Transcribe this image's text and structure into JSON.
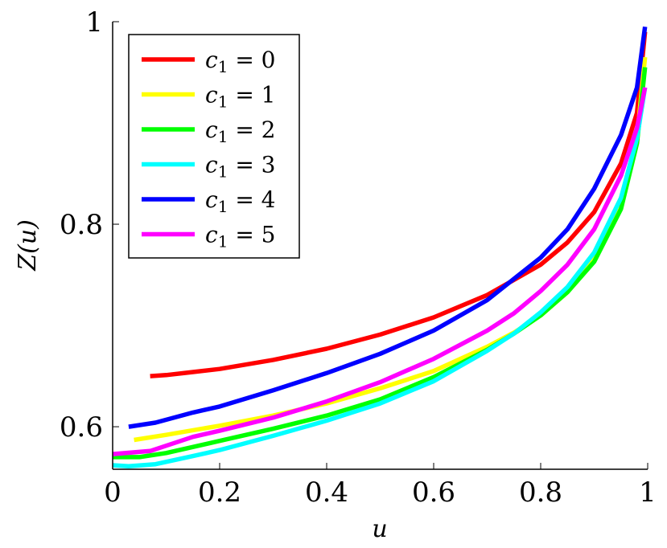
{
  "chart_data": {
    "type": "line",
    "xlabel": "u",
    "ylabel": "Z(u)",
    "xlim": [
      0,
      1
    ],
    "ylim": [
      0.558,
      1.0
    ],
    "x_ticks": [
      {
        "value": 0,
        "label": "0"
      },
      {
        "value": 0.2,
        "label": "0.2"
      },
      {
        "value": 0.4,
        "label": "0.4"
      },
      {
        "value": 0.6,
        "label": "0.6"
      },
      {
        "value": 0.8,
        "label": "0.8"
      },
      {
        "value": 1,
        "label": "1"
      }
    ],
    "y_ticks": [
      {
        "value": 0.6,
        "label": "0.6"
      },
      {
        "value": 0.8,
        "label": "0.8"
      },
      {
        "value": 1,
        "label": "1"
      }
    ],
    "grid": false,
    "legend_position": "top-left",
    "series": [
      {
        "name": "c1 = 0",
        "legend_sub": "1",
        "legend_value": "0",
        "color": "#ff0000",
        "x": [
          0.07,
          0.1,
          0.15,
          0.2,
          0.3,
          0.4,
          0.5,
          0.6,
          0.7,
          0.8,
          0.85,
          0.9,
          0.95,
          0.98,
          0.995
        ],
        "y": [
          0.65,
          0.651,
          0.654,
          0.657,
          0.666,
          0.677,
          0.691,
          0.708,
          0.73,
          0.76,
          0.782,
          0.812,
          0.86,
          0.91,
          0.99
        ]
      },
      {
        "name": "c1 = 1",
        "legend_sub": "1",
        "legend_value": "1",
        "color": "#ffff00",
        "x": [
          0.04,
          0.1,
          0.2,
          0.3,
          0.4,
          0.5,
          0.6,
          0.7,
          0.75,
          0.8,
          0.85,
          0.9,
          0.95,
          0.98,
          0.995
        ],
        "y": [
          0.587,
          0.592,
          0.601,
          0.611,
          0.623,
          0.638,
          0.655,
          0.679,
          0.693,
          0.71,
          0.733,
          0.765,
          0.82,
          0.885,
          0.965
        ]
      },
      {
        "name": "c1 = 2",
        "legend_sub": "1",
        "legend_value": "2",
        "color": "#00ff00",
        "x": [
          0,
          0.05,
          0.1,
          0.2,
          0.3,
          0.4,
          0.5,
          0.6,
          0.7,
          0.75,
          0.8,
          0.85,
          0.9,
          0.95,
          0.98,
          0.995
        ],
        "y": [
          0.57,
          0.57,
          0.574,
          0.586,
          0.598,
          0.611,
          0.627,
          0.649,
          0.676,
          0.692,
          0.71,
          0.733,
          0.763,
          0.815,
          0.88,
          0.955
        ]
      },
      {
        "name": "c1 = 3",
        "legend_sub": "1",
        "legend_value": "3",
        "color": "#00ffff",
        "x": [
          0,
          0.03,
          0.08,
          0.15,
          0.2,
          0.3,
          0.4,
          0.5,
          0.6,
          0.7,
          0.75,
          0.8,
          0.85,
          0.9,
          0.95,
          0.98,
          0.995
        ],
        "y": [
          0.562,
          0.561,
          0.563,
          0.571,
          0.577,
          0.591,
          0.606,
          0.623,
          0.645,
          0.675,
          0.692,
          0.713,
          0.738,
          0.772,
          0.826,
          0.885,
          0.935
        ]
      },
      {
        "name": "c1 = 4",
        "legend_sub": "1",
        "legend_value": "4",
        "color": "#0000ff",
        "x": [
          0.03,
          0.08,
          0.15,
          0.2,
          0.3,
          0.4,
          0.5,
          0.6,
          0.7,
          0.8,
          0.85,
          0.9,
          0.95,
          0.98,
          0.995
        ],
        "y": [
          0.6,
          0.604,
          0.614,
          0.62,
          0.636,
          0.653,
          0.672,
          0.695,
          0.725,
          0.767,
          0.795,
          0.835,
          0.888,
          0.935,
          0.995
        ]
      },
      {
        "name": "c1 = 5",
        "legend_sub": "1",
        "legend_value": "5",
        "color": "#ff00ff",
        "x": [
          0,
          0.07,
          0.15,
          0.2,
          0.3,
          0.4,
          0.5,
          0.6,
          0.7,
          0.75,
          0.8,
          0.85,
          0.9,
          0.95,
          0.98,
          0.995
        ],
        "y": [
          0.573,
          0.576,
          0.59,
          0.596,
          0.609,
          0.625,
          0.644,
          0.667,
          0.695,
          0.712,
          0.734,
          0.76,
          0.795,
          0.848,
          0.895,
          0.935
        ]
      }
    ]
  }
}
